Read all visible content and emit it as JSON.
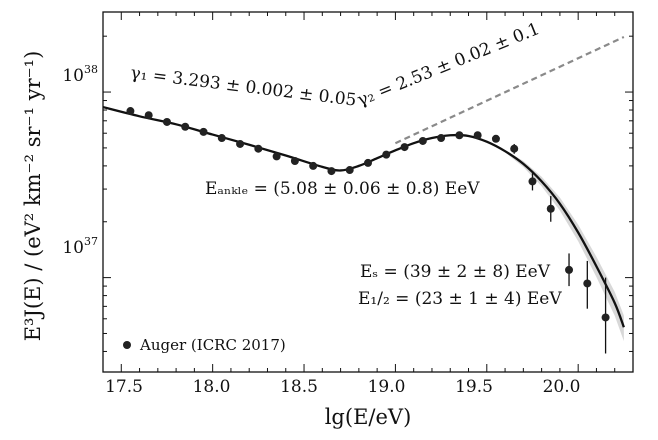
{
  "chart_data": {
    "type": "scatter",
    "title": "",
    "xlabel": "lg(E/eV)",
    "ylabel": "E³J(E) / (eV² km⁻² sr⁻¹ yr⁻¹)",
    "xlim": [
      17.4,
      20.3
    ],
    "ylog": true,
    "ylim": [
      3.1e+36,
      2.7e+38
    ],
    "x_ticks": [
      "17.5",
      "18.0",
      "18.5",
      "19.0",
      "19.5",
      "20.0"
    ],
    "x_tick_values": [
      17.5,
      18.0,
      18.5,
      19.0,
      19.5,
      20.0
    ],
    "y_ticks": [
      {
        "base": "10",
        "exp": "37",
        "value": 1e+37
      },
      {
        "base": "10",
        "exp": "38",
        "value": 1e+38
      }
    ],
    "series": [
      {
        "name": "Auger (ICRC 2017)",
        "kind": "points",
        "x": [
          17.55,
          17.65,
          17.75,
          17.85,
          17.95,
          18.05,
          18.15,
          18.25,
          18.35,
          18.45,
          18.55,
          18.65,
          18.75,
          18.85,
          18.95,
          19.05,
          19.15,
          19.25,
          19.35,
          19.45,
          19.55,
          19.65,
          19.75,
          19.85,
          19.95,
          20.05,
          20.15
        ],
        "y": [
          7.9e+37,
          7.5e+37,
          6.9e+37,
          6.5e+37,
          6.1e+37,
          5.65e+37,
          5.25e+37,
          4.95e+37,
          4.5e+37,
          4.25e+37,
          4e+37,
          3.75e+37,
          3.8e+37,
          4.15e+37,
          4.6e+37,
          5.05e+37,
          5.45e+37,
          5.65e+37,
          5.85e+37,
          5.85e+37,
          5.6e+37,
          4.95e+37,
          3.3e+37,
          2.35e+37,
          1.1e+37,
          9.3e+36,
          6.1e+36
        ],
        "y_err_low": [
          0,
          0,
          0,
          0,
          0,
          0,
          0,
          0,
          0,
          0,
          0,
          0,
          0,
          0,
          0,
          0,
          0,
          0,
          0,
          0,
          0,
          3e+36,
          3.5e+36,
          3.5e+36,
          2e+36,
          2.5e+36,
          2.2e+36
        ],
        "y_err_high": [
          0,
          0,
          0,
          0,
          0,
          0,
          0,
          0,
          0,
          0,
          0,
          0,
          0,
          0,
          0,
          0,
          0,
          0,
          0,
          0,
          0,
          3e+36,
          3.5e+36,
          4e+36,
          2.5e+36,
          3e+36,
          3.9e+36
        ]
      },
      {
        "name": "Fit",
        "kind": "line",
        "x": [
          17.4,
          17.6,
          17.8,
          18.0,
          18.2,
          18.4,
          18.6,
          18.7,
          18.8,
          18.9,
          19.0,
          19.1,
          19.2,
          19.3,
          19.4,
          19.5,
          19.6,
          19.7,
          19.8,
          19.9,
          20.0,
          20.1,
          20.2,
          20.25
        ],
        "y": [
          8.3e+37,
          7.4e+37,
          6.7e+37,
          5.9e+37,
          5.2e+37,
          4.55e+37,
          3.95e+37,
          3.78e+37,
          4e+37,
          4.4e+37,
          4.85e+37,
          5.3e+37,
          5.65e+37,
          5.85e+37,
          5.8e+37,
          5.4e+37,
          4.8e+37,
          4.1e+37,
          3.3e+37,
          2.5e+37,
          1.75e+37,
          1.15e+37,
          7.3e+36,
          5.4e+36
        ]
      },
      {
        "name": "Power-law extrapolation",
        "kind": "dashed",
        "x": [
          19.0,
          20.25
        ],
        "y": [
          5.3e+37,
          1.98e+38
        ]
      }
    ],
    "annotations": [
      {
        "id": "gamma1",
        "text": "γ₁ = 3.293 ± 0.002 ± 0.05",
        "x": 17.58,
        "y": 6.85e+37,
        "rotate": 7
      },
      {
        "id": "gamma2",
        "text": "γ₂ = 2.53 ± 0.02 ± 0.1",
        "x": 18.93,
        "y": 5.4e+37,
        "rotate": -22
      },
      {
        "id": "eankle",
        "text": "Eₐₙₖₗₑ = (5.08 ± 0.06 ± 0.8) EeV",
        "x": 18.08,
        "y": 2.55e+37
      },
      {
        "id": "es",
        "text": "Eₛ = (39 ± 2 ± 8) EeV",
        "x": 19.42,
        "y": 7.6e+36
      },
      {
        "id": "ehalf",
        "text": "E₁/₂ = (23 ± 1 ± 4) EeV",
        "x": 19.4,
        "y": 5.4e+36
      }
    ],
    "legend": {
      "position": "bottom-left",
      "label": "Auger (ICRC 2017)"
    },
    "grid": false
  }
}
